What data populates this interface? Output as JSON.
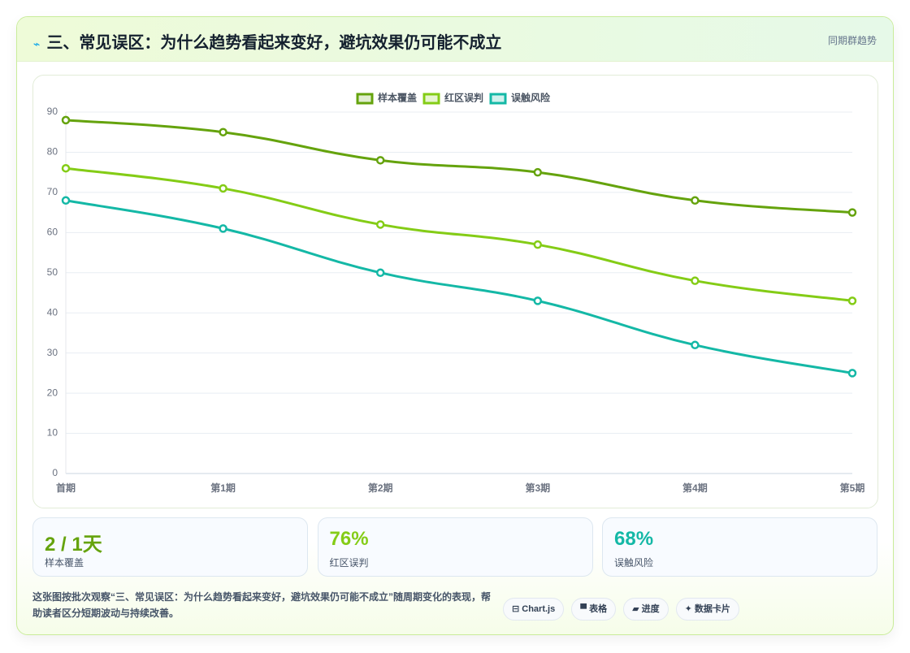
{
  "header": {
    "icon": "⌁",
    "title": "三、常见误区：为什么趋势看起来变好，避坑效果仍可能不成立",
    "tag": "同期群趋势"
  },
  "chart_data": {
    "type": "line",
    "categories": [
      "首期",
      "第1期",
      "第2期",
      "第3期",
      "第4期",
      "第5期"
    ],
    "series": [
      {
        "name": "样本覆盖",
        "color": "#65a30d",
        "values": [
          88,
          85,
          78,
          75,
          68,
          65
        ]
      },
      {
        "name": "红区误判",
        "color": "#84cc16",
        "values": [
          76,
          71,
          62,
          57,
          48,
          43
        ]
      },
      {
        "name": "误触风险",
        "color": "#14b8a6",
        "values": [
          68,
          61,
          50,
          43,
          32,
          25
        ]
      }
    ],
    "ylim": [
      0,
      90
    ],
    "yticks": [
      0,
      10,
      20,
      30,
      40,
      50,
      60,
      70,
      80,
      90
    ],
    "grid": true,
    "legend": "top"
  },
  "stats": [
    {
      "value": "2 / 1天",
      "label": "样本覆盖",
      "color": "#65a30d"
    },
    {
      "value": "76%",
      "label": "红区误判",
      "color": "#84cc16"
    },
    {
      "value": "68%",
      "label": "误触风险",
      "color": "#14b8a6"
    }
  ],
  "footer": {
    "text": "这张图按批次观察“三、常见误区：为什么趋势看起来变好，避坑效果仍可能不成立”随周期变化的表现，帮助读者区分短期波动与持续改善。",
    "buttons": [
      "⊟ Chart.js",
      "▀ 表格",
      "▰ 进度",
      "✦ 数据卡片"
    ]
  }
}
